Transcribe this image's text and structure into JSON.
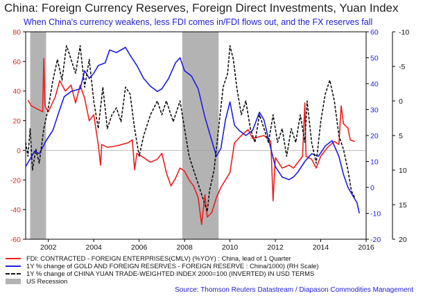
{
  "header": {
    "title": "China: Foreign Currency Reserves, Foreign Direct Investments, Yuan Index",
    "subtitle": "When China's currency weakens, less FDI comes in/FDI flows out, and the FX reserves fall"
  },
  "source": "Source: Thomson Reuters Datastream / Diapason Commodities Management",
  "colors": {
    "fdi": "#ee1c1c",
    "reserves": "#1c1ce6",
    "yuan": "#111111",
    "recession": "#b3b3b3"
  },
  "chart_data": {
    "type": "line",
    "x_ticks": [
      2002,
      2004,
      2006,
      2008,
      2010,
      2012,
      2014,
      2016
    ],
    "xlim": [
      2001.0,
      2016.0
    ],
    "axes": {
      "left": {
        "ylim": [
          -60,
          80
        ],
        "ticks": [
          -60,
          -40,
          -20,
          0,
          20,
          40,
          60,
          80
        ],
        "color": "#ee1c1c"
      },
      "right": {
        "ylim": [
          -20,
          60
        ],
        "ticks": [
          -20,
          -10,
          0,
          10,
          20,
          30,
          40,
          50,
          60
        ],
        "color": "#1c1ce6"
      },
      "far_right": {
        "ylim": [
          20,
          -10
        ],
        "ticks": [
          20,
          15,
          10,
          5,
          0,
          -5,
          -10
        ],
        "color": "#111111",
        "inverted": true
      }
    },
    "recessions": [
      [
        2001.2,
        2001.9
      ],
      [
        2007.9,
        2009.5
      ]
    ],
    "series": [
      {
        "name": "FDI: CONTRACTED - FOREIGN ENTERPRISES(CMLV) (%YOY) : China, lead of 1 Quarter",
        "axis": "left",
        "color": "#ee1c1c",
        "points": [
          [
            2001.1,
            34
          ],
          [
            2001.25,
            30
          ],
          [
            2001.5,
            28
          ],
          [
            2001.75,
            26
          ],
          [
            2001.8,
            62
          ],
          [
            2001.85,
            30
          ],
          [
            2002.0,
            26
          ],
          [
            2002.3,
            36
          ],
          [
            2002.5,
            47
          ],
          [
            2002.75,
            40
          ],
          [
            2003.0,
            44
          ],
          [
            2003.2,
            32
          ],
          [
            2003.4,
            44
          ],
          [
            2003.6,
            35
          ],
          [
            2003.8,
            20
          ],
          [
            2004.0,
            24
          ],
          [
            2004.2,
            4
          ],
          [
            2004.3,
            -10
          ],
          [
            2004.35,
            4
          ],
          [
            2004.6,
            2
          ],
          [
            2005.0,
            3
          ],
          [
            2005.5,
            5
          ],
          [
            2005.7,
            7
          ],
          [
            2005.8,
            -13
          ],
          [
            2005.9,
            -2
          ],
          [
            2006.2,
            -5
          ],
          [
            2006.5,
            -8
          ],
          [
            2006.8,
            -6
          ],
          [
            2007.0,
            -2
          ],
          [
            2007.2,
            -15
          ],
          [
            2007.4,
            -24
          ],
          [
            2007.6,
            -19
          ],
          [
            2007.8,
            -12
          ],
          [
            2008.0,
            -14
          ],
          [
            2008.2,
            -20
          ],
          [
            2008.4,
            -24
          ],
          [
            2008.6,
            -32
          ],
          [
            2008.75,
            -50
          ],
          [
            2008.9,
            -30
          ],
          [
            2009.0,
            -45
          ],
          [
            2009.2,
            -42
          ],
          [
            2009.4,
            -32
          ],
          [
            2009.6,
            -25
          ],
          [
            2009.8,
            -20
          ],
          [
            2010.0,
            -15
          ],
          [
            2010.2,
            5
          ],
          [
            2010.5,
            10
          ],
          [
            2010.8,
            14
          ],
          [
            2011.0,
            8
          ],
          [
            2011.5,
            10
          ],
          [
            2011.8,
            6
          ],
          [
            2011.9,
            -34
          ],
          [
            2012.0,
            -5
          ],
          [
            2012.3,
            -12
          ],
          [
            2012.6,
            -10
          ],
          [
            2012.8,
            -12
          ],
          [
            2013.0,
            -8
          ],
          [
            2013.2,
            -4
          ],
          [
            2013.3,
            32
          ],
          [
            2013.35,
            -4
          ],
          [
            2013.6,
            -6
          ],
          [
            2013.8,
            -12
          ],
          [
            2014.0,
            -4
          ],
          [
            2014.3,
            2
          ],
          [
            2014.6,
            6
          ],
          [
            2014.8,
            4
          ],
          [
            2014.9,
            30
          ],
          [
            2015.0,
            18
          ],
          [
            2015.2,
            15
          ],
          [
            2015.3,
            7
          ],
          [
            2015.5,
            6
          ]
        ]
      },
      {
        "name": "1Y % change of GOLD AND FOREIGN RESERVES - FOREIGN RESERVE : China/1000) (RH Scale)",
        "axis": "right",
        "color": "#1c1ce6",
        "points": [
          [
            2001.0,
            8
          ],
          [
            2001.2,
            11
          ],
          [
            2001.4,
            14
          ],
          [
            2001.6,
            13
          ],
          [
            2001.9,
            18
          ],
          [
            2002.2,
            22
          ],
          [
            2002.5,
            30
          ],
          [
            2002.7,
            35
          ],
          [
            2003.0,
            37
          ],
          [
            2003.4,
            38
          ],
          [
            2003.6,
            45
          ],
          [
            2003.8,
            42
          ],
          [
            2004.0,
            44
          ],
          [
            2004.2,
            47
          ],
          [
            2004.5,
            48
          ],
          [
            2004.7,
            53
          ],
          [
            2005.0,
            52
          ],
          [
            2005.4,
            54
          ],
          [
            2005.6,
            51
          ],
          [
            2005.9,
            47
          ],
          [
            2006.2,
            42
          ],
          [
            2006.5,
            39
          ],
          [
            2006.8,
            37
          ],
          [
            2007.0,
            38
          ],
          [
            2007.3,
            42
          ],
          [
            2007.6,
            48
          ],
          [
            2007.8,
            50
          ],
          [
            2008.0,
            45
          ],
          [
            2008.3,
            43
          ],
          [
            2008.6,
            38
          ],
          [
            2008.9,
            27
          ],
          [
            2009.2,
            18
          ],
          [
            2009.4,
            12
          ],
          [
            2009.6,
            15
          ],
          [
            2009.8,
            26
          ],
          [
            2010.0,
            33
          ],
          [
            2010.2,
            24
          ],
          [
            2010.4,
            22
          ],
          [
            2010.7,
            20
          ],
          [
            2011.0,
            22
          ],
          [
            2011.3,
            29
          ],
          [
            2011.5,
            26
          ],
          [
            2011.8,
            15
          ],
          [
            2012.0,
            8
          ],
          [
            2012.3,
            4
          ],
          [
            2012.6,
            3
          ],
          [
            2012.8,
            4
          ],
          [
            2013.0,
            6
          ],
          [
            2013.3,
            10
          ],
          [
            2013.6,
            13
          ],
          [
            2013.9,
            12
          ],
          [
            2014.2,
            16
          ],
          [
            2014.5,
            18
          ],
          [
            2014.8,
            12
          ],
          [
            2015.0,
            5
          ],
          [
            2015.2,
            0
          ],
          [
            2015.4,
            -3
          ],
          [
            2015.6,
            -6
          ],
          [
            2015.7,
            -10
          ]
        ]
      },
      {
        "name": "1Y % change of CHINA YUAN TRADE-WEIGHTED INDEX 2000=100 (INVERTED) IN USD TERMS",
        "axis": "far_right",
        "color": "#111111",
        "dash": true,
        "points": [
          [
            2001.0,
            6
          ],
          [
            2001.1,
            8
          ],
          [
            2001.2,
            4
          ],
          [
            2001.3,
            10
          ],
          [
            2001.45,
            7
          ],
          [
            2001.6,
            9
          ],
          [
            2001.8,
            4
          ],
          [
            2002.0,
            1
          ],
          [
            2002.2,
            -3
          ],
          [
            2002.4,
            -6
          ],
          [
            2002.6,
            -3
          ],
          [
            2002.8,
            -8
          ],
          [
            2003.0,
            -6
          ],
          [
            2003.2,
            -4
          ],
          [
            2003.4,
            -8
          ],
          [
            2003.6,
            -2
          ],
          [
            2003.8,
            -6
          ],
          [
            2004.0,
            0
          ],
          [
            2004.2,
            4
          ],
          [
            2004.4,
            -2
          ],
          [
            2004.6,
            4
          ],
          [
            2004.8,
            2
          ],
          [
            2005.0,
            1
          ],
          [
            2005.2,
            3
          ],
          [
            2005.4,
            -2
          ],
          [
            2005.6,
            -1
          ],
          [
            2005.8,
            4
          ],
          [
            2006.0,
            8
          ],
          [
            2006.2,
            5
          ],
          [
            2006.5,
            2
          ],
          [
            2006.8,
            0
          ],
          [
            2007.0,
            2
          ],
          [
            2007.2,
            0
          ],
          [
            2007.5,
            3
          ],
          [
            2007.8,
            0
          ],
          [
            2008.0,
            4
          ],
          [
            2008.2,
            8
          ],
          [
            2008.4,
            10
          ],
          [
            2008.6,
            12
          ],
          [
            2008.8,
            14
          ],
          [
            2009.0,
            16
          ],
          [
            2009.1,
            13
          ],
          [
            2009.3,
            10
          ],
          [
            2009.5,
            4
          ],
          [
            2009.7,
            -2
          ],
          [
            2009.9,
            -4
          ],
          [
            2010.0,
            -8
          ],
          [
            2010.15,
            -6
          ],
          [
            2010.3,
            -2
          ],
          [
            2010.5,
            2
          ],
          [
            2010.7,
            0
          ],
          [
            2010.9,
            4
          ],
          [
            2011.1,
            6
          ],
          [
            2011.3,
            2
          ],
          [
            2011.5,
            4
          ],
          [
            2011.7,
            6
          ],
          [
            2011.9,
            2
          ],
          [
            2012.1,
            6
          ],
          [
            2012.3,
            4
          ],
          [
            2012.5,
            8
          ],
          [
            2012.7,
            4
          ],
          [
            2012.9,
            6
          ],
          [
            2013.1,
            2
          ],
          [
            2013.3,
            6
          ],
          [
            2013.4,
            0
          ],
          [
            2013.6,
            6
          ],
          [
            2013.8,
            9
          ],
          [
            2014.0,
            3
          ],
          [
            2014.2,
            -1
          ],
          [
            2014.4,
            -3
          ],
          [
            2014.6,
            0
          ],
          [
            2014.8,
            5
          ],
          [
            2015.0,
            7
          ],
          [
            2015.2,
            10
          ],
          [
            2015.35,
            13
          ],
          [
            2015.5,
            14
          ]
        ]
      }
    ],
    "legend": [
      {
        "label": "FDI: CONTRACTED - FOREIGN ENTERPRISES(CMLV) (%YOY) : China, lead of 1 Quarter",
        "kind": "line",
        "color": "#ee1c1c"
      },
      {
        "label": "1Y % change of GOLD AND FOREIGN RESERVES - FOREIGN RESERVE : China/1000) (RH Scale)",
        "kind": "line",
        "color": "#1c1ce6"
      },
      {
        "label": "1Y % change of CHINA YUAN TRADE-WEIGHTED INDEX 2000=100 (INVERTED) IN USD TERMS",
        "kind": "dash",
        "color": "#111111"
      },
      {
        "label": "US Recession",
        "kind": "box",
        "color": "#b3b3b3"
      }
    ]
  }
}
